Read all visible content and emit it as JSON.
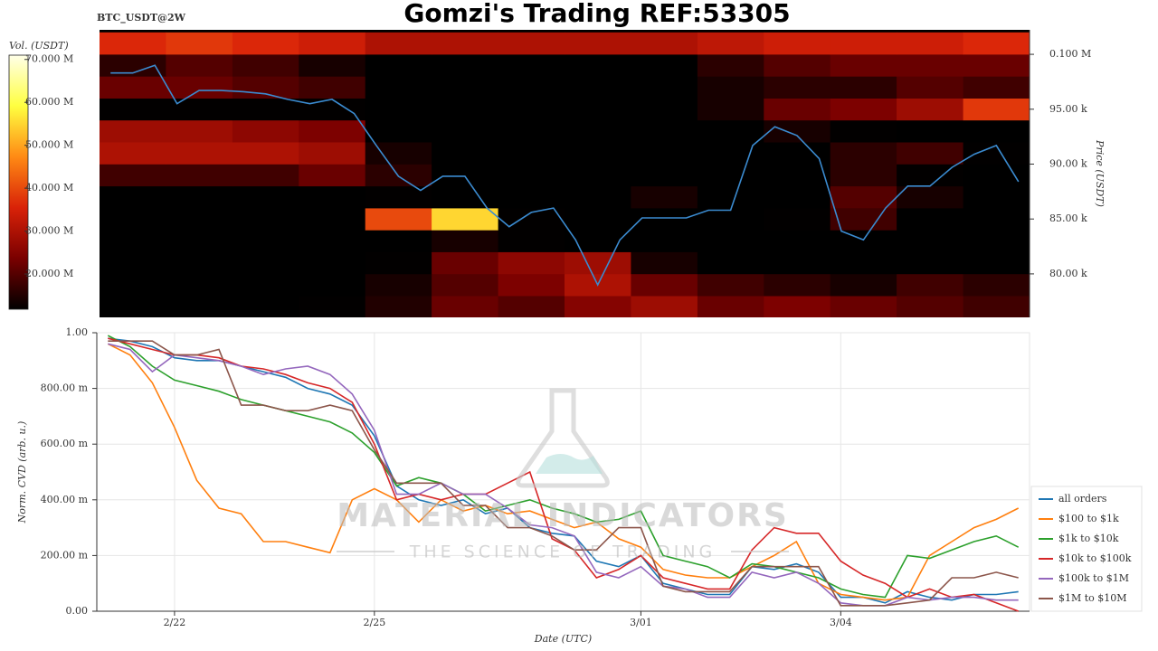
{
  "title": "Gomzi's Trading REF:53305",
  "watermark": {
    "title": "MATERIAL INDICATORS",
    "subtitle": "THE SCIENCE OF TRADING"
  },
  "chart_data": [
    {
      "type": "heatmap",
      "title": "BTC_USDT@2W",
      "ylabel": "Price (USDT)",
      "yaxis_side": "right",
      "categories": [
        null,
        null,
        null,
        null,
        null,
        null,
        null,
        null,
        null,
        null,
        null,
        null,
        null,
        null,
        null,
        null,
        null,
        null,
        null,
        null,
        null,
        null,
        null,
        null,
        null,
        null,
        null,
        null,
        null,
        null,
        null,
        null,
        null,
        null,
        null,
        null,
        null,
        null,
        null,
        null,
        null,
        null
      ],
      "ylim": [
        76040,
        102230
      ],
      "yticks": [
        {
          "value": 80000,
          "label": "80.00 k"
        },
        {
          "value": 85000,
          "label": "85.00 k"
        },
        {
          "value": 90000,
          "label": "90.00 k"
        },
        {
          "value": 95000,
          "label": "95.00 k"
        },
        {
          "value": 100000,
          "label": "0.100 M"
        }
      ],
      "series": [
        {
          "color": "#3b8bd0",
          "values": [
            98300,
            98300,
            99000,
            95500,
            96700,
            96700,
            96600,
            96400,
            95900,
            95500,
            95900,
            94600,
            91700,
            88900,
            87600,
            88900,
            88900,
            86000,
            84300,
            85600,
            86000,
            83100,
            79000,
            83100,
            85100,
            85100,
            85100,
            85800,
            85800,
            91700,
            93400,
            92600,
            90500,
            83900,
            83100,
            86000,
            88000,
            88000,
            89700,
            90900,
            91700,
            88400
          ]
        }
      ],
      "heatmap": {
        "y_bins": [
          76000,
          78000,
          80000,
          82000,
          84000,
          86000,
          88000,
          90000,
          92000,
          94000,
          96000,
          98000,
          100000,
          102000
        ],
        "z": [
          [
            10000000,
            10000000,
            10000000,
            12000000,
            15000000,
            22000000,
            20000000,
            25000000,
            28000000,
            22000000,
            24000000,
            22000000,
            20000000,
            18000000
          ],
          [
            8000000,
            8000000,
            8000000,
            10000000,
            14000000,
            20000000,
            24000000,
            30000000,
            22000000,
            18000000,
            16000000,
            14000000,
            18000000,
            16000000
          ],
          [
            4000000,
            4000000,
            4000000,
            6000000,
            12000000,
            22000000,
            26000000,
            28000000,
            14000000,
            8000000,
            6000000,
            6000000,
            8000000,
            6000000
          ],
          [
            3000000,
            3000000,
            3000000,
            4000000,
            6000000,
            14000000,
            12000000,
            8000000,
            10000000,
            6000000,
            4000000,
            4000000,
            6000000,
            5000000
          ],
          [
            3000000,
            3000000,
            3000000,
            5000000,
            40000000,
            55000000,
            12000000,
            8000000,
            10000000,
            8000000,
            12000000,
            18000000,
            8000000,
            6000000
          ],
          [
            4000000,
            4000000,
            4000000,
            6000000,
            12000000,
            8000000,
            8000000,
            10000000,
            14000000,
            10000000,
            10000000,
            20000000,
            14000000,
            10000000
          ],
          [
            18000000,
            18000000,
            18000000,
            22000000,
            16000000,
            10000000,
            8000000,
            8000000,
            8000000,
            8000000,
            10000000,
            16000000,
            12000000,
            10000000
          ],
          [
            30000000,
            30000000,
            30000000,
            28000000,
            14000000,
            8000000,
            6000000,
            6000000,
            6000000,
            8000000,
            10000000,
            16000000,
            18000000,
            12000000
          ],
          [
            28000000,
            28000000,
            26000000,
            24000000,
            10000000,
            6000000,
            6000000,
            6000000,
            6000000,
            10000000,
            14000000,
            12000000,
            10000000,
            10000000
          ],
          [
            12000000,
            12000000,
            12000000,
            12000000,
            8000000,
            6000000,
            6000000,
            6000000,
            6000000,
            14000000,
            22000000,
            24000000,
            28000000,
            38000000
          ],
          [
            22000000,
            22000000,
            20000000,
            18000000,
            10000000,
            8000000,
            8000000,
            8000000,
            8000000,
            14000000,
            16000000,
            16000000,
            20000000,
            18000000
          ],
          [
            16000000,
            20000000,
            18000000,
            14000000,
            10000000,
            10000000,
            10000000,
            10000000,
            10000000,
            16000000,
            20000000,
            22000000,
            22000000,
            22000000
          ],
          [
            36000000,
            38000000,
            36000000,
            34000000,
            30000000,
            30000000,
            30000000,
            30000000,
            30000000,
            32000000,
            34000000,
            34000000,
            34000000,
            36000000
          ]
        ],
        "zlabel": "Vol. (USDT)",
        "zlim": [
          11800000,
          71000000
        ],
        "zticks": [
          {
            "value": 20000000,
            "label": "20.000 M"
          },
          {
            "value": 30000000,
            "label": "30.000 M"
          },
          {
            "value": 40000000,
            "label": "40.000 M"
          },
          {
            "value": 50000000,
            "label": "50.000 M"
          },
          {
            "value": 60000000,
            "label": "60.000 M"
          },
          {
            "value": 70000000,
            "label": "70.000 M"
          }
        ],
        "colorscale": [
          "#000000",
          "#7a0000",
          "#d92208",
          "#ff8a14",
          "#ffff40",
          "#ffffe8"
        ]
      }
    },
    {
      "type": "line",
      "xlabel": "Date (UTC)",
      "ylabel": "Norm. CVD (arb. u.)",
      "grid": true,
      "legend": "right-bottom",
      "categories": [
        null,
        null,
        null,
        "2/22",
        null,
        null,
        null,
        null,
        null,
        null,
        null,
        null,
        "2/25",
        null,
        null,
        null,
        null,
        null,
        null,
        null,
        null,
        null,
        null,
        null,
        "3/01",
        null,
        null,
        null,
        null,
        null,
        null,
        null,
        null,
        "3/04",
        null,
        null,
        null,
        null,
        null,
        null,
        null,
        null
      ],
      "ylim": [
        0,
        1
      ],
      "yticks": [
        {
          "value": 0,
          "label": "0.00"
        },
        {
          "value": 0.2,
          "label": "200.00 m"
        },
        {
          "value": 0.4,
          "label": "400.00 m"
        },
        {
          "value": 0.6,
          "label": "600.00 m"
        },
        {
          "value": 0.8,
          "label": "800.00 m"
        },
        {
          "value": 1,
          "label": "1.00"
        }
      ],
      "series": [
        {
          "name": "all orders",
          "color": "#1f77b4",
          "values": [
            0.98,
            0.97,
            0.95,
            0.91,
            0.9,
            0.9,
            0.88,
            0.86,
            0.84,
            0.8,
            0.78,
            0.74,
            0.63,
            0.45,
            0.4,
            0.38,
            0.4,
            0.35,
            0.37,
            0.3,
            0.28,
            0.27,
            0.18,
            0.16,
            0.2,
            0.1,
            0.08,
            0.06,
            0.06,
            0.16,
            0.15,
            0.17,
            0.14,
            0.05,
            0.05,
            0.03,
            0.07,
            0.05,
            0.04,
            0.06,
            0.06,
            0.07
          ]
        },
        {
          "name": "$100 to $1k",
          "color": "#ff7f0e",
          "values": [
            0.96,
            0.92,
            0.82,
            0.66,
            0.47,
            0.37,
            0.35,
            0.25,
            0.25,
            0.23,
            0.21,
            0.4,
            0.44,
            0.4,
            0.32,
            0.4,
            0.36,
            0.38,
            0.35,
            0.36,
            0.33,
            0.3,
            0.32,
            0.26,
            0.23,
            0.15,
            0.13,
            0.12,
            0.12,
            0.16,
            0.2,
            0.25,
            0.1,
            0.06,
            0.05,
            0.04,
            0.05,
            0.2,
            0.25,
            0.3,
            0.33,
            0.37
          ]
        },
        {
          "name": "$1k to $10k",
          "color": "#2ca02c",
          "values": [
            0.99,
            0.95,
            0.88,
            0.83,
            0.81,
            0.79,
            0.76,
            0.74,
            0.72,
            0.7,
            0.68,
            0.64,
            0.57,
            0.45,
            0.48,
            0.46,
            0.42,
            0.36,
            0.38,
            0.4,
            0.37,
            0.35,
            0.32,
            0.33,
            0.36,
            0.2,
            0.18,
            0.16,
            0.12,
            0.17,
            0.16,
            0.14,
            0.12,
            0.08,
            0.06,
            0.05,
            0.2,
            0.19,
            0.22,
            0.25,
            0.27,
            0.23
          ]
        },
        {
          "name": "$10k to $100k",
          "color": "#d62728",
          "values": [
            0.98,
            0.96,
            0.94,
            0.92,
            0.92,
            0.91,
            0.88,
            0.87,
            0.85,
            0.82,
            0.8,
            0.75,
            0.6,
            0.4,
            0.42,
            0.4,
            0.42,
            0.42,
            0.46,
            0.5,
            0.26,
            0.22,
            0.12,
            0.15,
            0.2,
            0.12,
            0.1,
            0.08,
            0.08,
            0.22,
            0.3,
            0.28,
            0.28,
            0.18,
            0.13,
            0.1,
            0.05,
            0.08,
            0.05,
            0.06,
            0.03,
            0.0
          ]
        },
        {
          "name": "$100k to $1M",
          "color": "#9467bd",
          "values": [
            0.96,
            0.94,
            0.86,
            0.92,
            0.91,
            0.9,
            0.88,
            0.85,
            0.87,
            0.88,
            0.85,
            0.78,
            0.65,
            0.42,
            0.42,
            0.46,
            0.42,
            0.42,
            0.37,
            0.31,
            0.3,
            0.27,
            0.14,
            0.12,
            0.16,
            0.09,
            0.08,
            0.05,
            0.05,
            0.14,
            0.12,
            0.14,
            0.1,
            0.03,
            0.02,
            0.02,
            0.05,
            0.04,
            0.05,
            0.05,
            0.04,
            0.04
          ]
        },
        {
          "name": "$1M to $10M",
          "color": "#8c564b",
          "values": [
            0.97,
            0.97,
            0.97,
            0.92,
            0.92,
            0.94,
            0.74,
            0.74,
            0.72,
            0.72,
            0.74,
            0.72,
            0.58,
            0.46,
            0.46,
            0.46,
            0.38,
            0.38,
            0.3,
            0.3,
            0.27,
            0.22,
            0.22,
            0.3,
            0.3,
            0.09,
            0.07,
            0.07,
            0.07,
            0.16,
            0.16,
            0.16,
            0.16,
            0.02,
            0.02,
            0.02,
            0.03,
            0.04,
            0.12,
            0.12,
            0.14,
            0.12
          ]
        }
      ]
    }
  ]
}
